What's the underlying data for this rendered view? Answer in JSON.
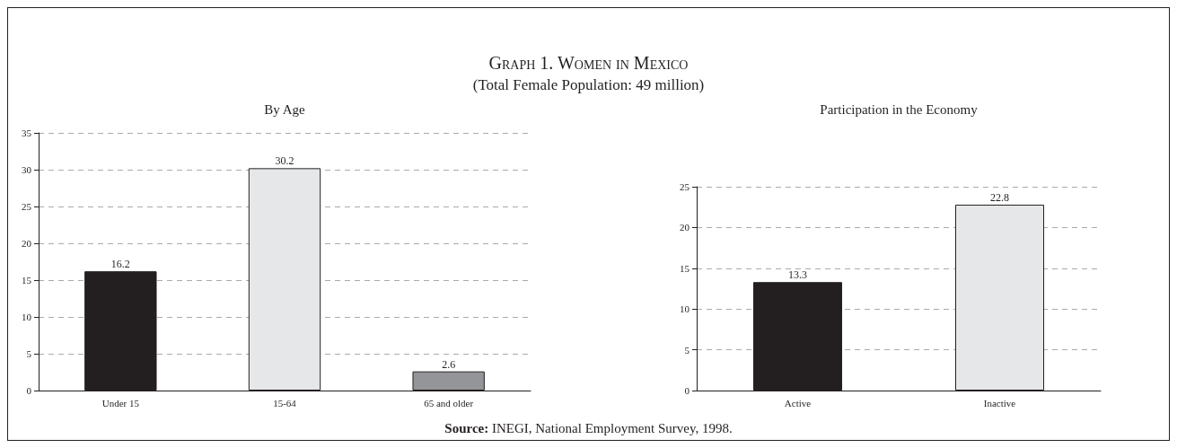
{
  "chart_data": [
    {
      "type": "bar",
      "title": "By Age",
      "annotations": [
        "Graph 1. Women in Mexico",
        "(Total Female Population: 49 million)",
        "Source: INEGI, National Employment Survey, 1998."
      ],
      "categories": [
        "Under 15",
        "15-64",
        "65 and older"
      ],
      "values": [
        16.2,
        30.2,
        2.6
      ],
      "colors": [
        "#231f20",
        "#e6e7e8",
        "#939598"
      ],
      "ylim": [
        0,
        35
      ],
      "yticks": [
        0,
        5,
        10,
        15,
        20,
        25,
        30,
        35
      ],
      "grid": "y",
      "data_labels": true
    },
    {
      "type": "bar",
      "title": "Participation in the Economy",
      "categories": [
        "Active",
        "Inactive"
      ],
      "values": [
        13.3,
        22.8
      ],
      "colors": [
        "#231f20",
        "#e6e7e8"
      ],
      "ylim": [
        0,
        25
      ],
      "yticks": [
        0,
        5,
        10,
        15,
        20,
        25
      ],
      "grid": "y",
      "data_labels": true
    }
  ]
}
